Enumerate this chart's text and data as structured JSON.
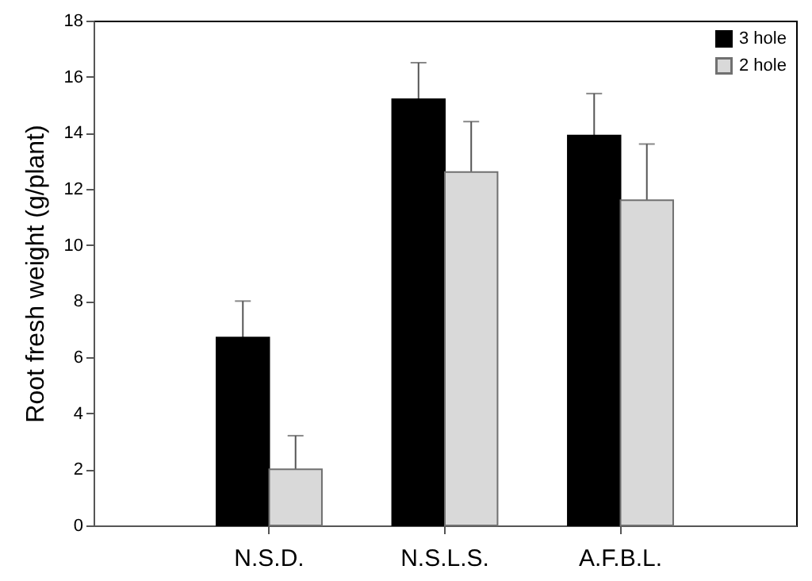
{
  "chart_data": {
    "type": "bar",
    "ylabel": "Root fresh weight (g/plant)",
    "categories": [
      "N.S.D.",
      "N.S.L.S.",
      "A.F.B.L."
    ],
    "series": [
      {
        "name": "3 hole",
        "color": "#000000",
        "values": [
          6.7,
          15.2,
          13.9
        ],
        "errors": [
          1.3,
          1.3,
          1.5
        ]
      },
      {
        "name": "2 hole",
        "color": "#d9d9d9",
        "values": [
          2.0,
          12.6,
          11.6
        ],
        "errors": [
          1.2,
          1.8,
          2.0
        ]
      }
    ],
    "ylim": [
      0,
      18
    ],
    "yticks": [
      0,
      2,
      4,
      6,
      8,
      10,
      12,
      14,
      16,
      18
    ],
    "grid": false,
    "legend": "top right"
  }
}
